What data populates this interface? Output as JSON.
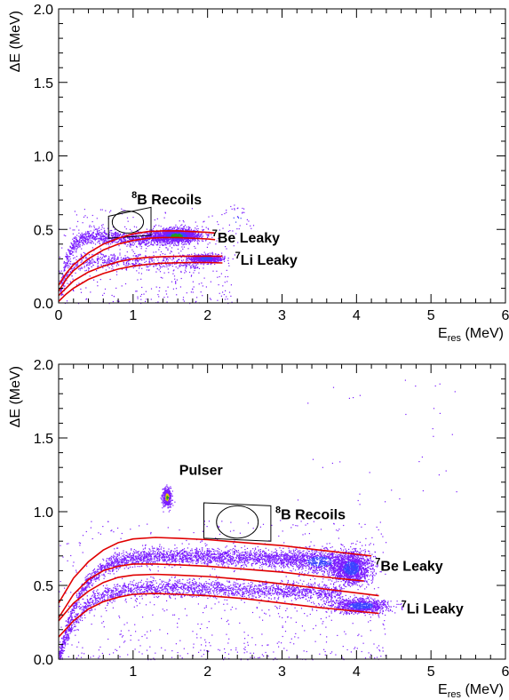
{
  "chart_data": [
    {
      "type": "scatter",
      "panel": "top",
      "xlabel_main": "E",
      "xlabel_sub": "res",
      "xlabel_unit": " (MeV)",
      "ylabel": "ΔE (MeV)",
      "xlim": [
        0,
        6
      ],
      "ylim": [
        0,
        2.0
      ],
      "xticks": [
        0,
        1,
        2,
        3,
        4,
        5,
        6
      ],
      "xtick_labels": [
        "0",
        "1",
        "2",
        "3",
        "4",
        "5",
        "6"
      ],
      "yticks": [
        0.0,
        0.5,
        1.0,
        1.5,
        2.0
      ],
      "ytick_labels": [
        "0.0",
        "0.5",
        "1.0",
        "1.5",
        "2.0"
      ],
      "grid": false,
      "annotations": [
        {
          "sup": "8",
          "text": "B Recoils",
          "x": 0.98,
          "y": 0.67
        },
        {
          "sup": "7",
          "text": "Be Leaky",
          "x": 2.06,
          "y": 0.41
        },
        {
          "sup": "7",
          "text": "Li Leaky",
          "x": 2.37,
          "y": 0.26
        }
      ],
      "selection_box": {
        "x": [
          0.67,
          1.24
        ],
        "y_low": [
          0.44,
          0.46
        ],
        "y_high": [
          0.59,
          0.65
        ]
      },
      "selection_circle": {
        "x": 0.93,
        "y": 0.55,
        "rx": 0.21,
        "ry": 0.075
      },
      "clusters": [
        {
          "name": "7Be",
          "x": 1.58,
          "y": 0.46,
          "sx": 0.17,
          "sy": 0.025,
          "n": 1500,
          "peak_color": "#1fa020"
        },
        {
          "name": "7Li",
          "x": 1.97,
          "y": 0.305,
          "sx": 0.11,
          "sy": 0.014,
          "n": 700
        },
        {
          "name": "upper-right",
          "x": 2.4,
          "y": 0.58,
          "sx": 0.1,
          "sy": 0.05,
          "n": 28
        }
      ],
      "bands": [
        {
          "x0": 0.02,
          "x1": 1.45,
          "a": 0.46,
          "b": 0.1,
          "c": 0.1,
          "n": 1000
        },
        {
          "x0": 0.02,
          "x1": 1.9,
          "a": 0.3,
          "b": 0.12,
          "c": 0.1,
          "n": 600
        }
      ],
      "curves": [
        {
          "x": [
            0.0,
            0.1,
            0.2,
            0.4,
            0.6,
            0.8,
            1.0,
            1.2,
            1.4,
            1.6,
            1.8,
            2.0,
            2.1
          ],
          "y": [
            0.12,
            0.2,
            0.26,
            0.34,
            0.4,
            0.44,
            0.47,
            0.485,
            0.49,
            0.49,
            0.485,
            0.48,
            0.475
          ]
        },
        {
          "x": [
            0.0,
            0.1,
            0.2,
            0.4,
            0.6,
            0.8,
            1.0,
            1.2,
            1.4,
            1.6,
            1.8,
            2.0,
            2.1
          ],
          "y": [
            0.08,
            0.16,
            0.22,
            0.3,
            0.36,
            0.4,
            0.425,
            0.44,
            0.445,
            0.445,
            0.44,
            0.435,
            0.43
          ]
        },
        {
          "x": [
            0.0,
            0.1,
            0.2,
            0.4,
            0.6,
            0.8,
            1.0,
            1.2,
            1.4,
            1.6,
            1.8,
            2.0,
            2.2
          ],
          "y": [
            0.05,
            0.1,
            0.15,
            0.21,
            0.25,
            0.28,
            0.3,
            0.31,
            0.315,
            0.317,
            0.318,
            0.318,
            0.318
          ]
        },
        {
          "x": [
            0.0,
            0.1,
            0.2,
            0.4,
            0.6,
            0.8,
            1.0,
            1.2,
            1.4,
            1.6,
            1.8,
            2.0,
            2.2
          ],
          "y": [
            0.01,
            0.06,
            0.1,
            0.16,
            0.2,
            0.23,
            0.25,
            0.263,
            0.27,
            0.273,
            0.275,
            0.275,
            0.272
          ]
        }
      ],
      "noise": {
        "n": 320,
        "x": [
          0.0,
          2.4
        ],
        "y": [
          0.0,
          0.65
        ]
      }
    },
    {
      "type": "scatter",
      "panel": "bottom",
      "xlabel_main": "E",
      "xlabel_sub": "res",
      "xlabel_unit": " (MeV)",
      "ylabel": "ΔE (MeV)",
      "xlim": [
        0,
        6
      ],
      "ylim": [
        0,
        2.0
      ],
      "xticks": [
        1,
        2,
        3,
        4,
        5,
        6
      ],
      "xtick_labels": [
        "1",
        "2",
        "3",
        "4",
        "5",
        "6"
      ],
      "yticks": [
        0.0,
        0.5,
        1.0,
        1.5,
        2.0
      ],
      "ytick_labels": [
        "0.0",
        "0.5",
        "1.0",
        "1.5",
        "2.0"
      ],
      "grid": false,
      "annotations": [
        {
          "sup": "",
          "text": "Pulser",
          "x": 1.62,
          "y": 1.25
        },
        {
          "sup": "8",
          "text": "B Recoils",
          "x": 2.91,
          "y": 0.95
        },
        {
          "sup": "7",
          "text": "Be Leaky",
          "x": 4.25,
          "y": 0.6
        },
        {
          "sup": "7",
          "text": "Li Leaky",
          "x": 4.6,
          "y": 0.31
        }
      ],
      "selection_box": {
        "x": [
          1.95,
          2.85
        ],
        "y_low": [
          0.82,
          0.8
        ],
        "y_high": [
          1.06,
          1.04
        ]
      },
      "selection_circle": {
        "x": 2.4,
        "y": 0.93,
        "rx": 0.28,
        "ry": 0.11
      },
      "clusters": [
        {
          "name": "pulser",
          "x": 1.45,
          "y": 1.1,
          "sx": 0.03,
          "sy": 0.03,
          "n": 500,
          "peak_color": "#1fa020",
          "hot": true
        },
        {
          "name": "7Be",
          "x": 3.92,
          "y": 0.62,
          "sx": 0.13,
          "sy": 0.055,
          "n": 1600
        },
        {
          "name": "7Be-tail",
          "x": 3.5,
          "y": 0.665,
          "sx": 0.2,
          "sy": 0.04,
          "n": 700
        },
        {
          "name": "7Li",
          "x": 4.05,
          "y": 0.365,
          "sx": 0.2,
          "sy": 0.025,
          "n": 900
        }
      ],
      "bands": [
        {
          "x0": 0.0,
          "x1": 3.3,
          "a": 0.73,
          "b": 0.25,
          "c": 0.3,
          "n": 2400
        },
        {
          "x0": 0.0,
          "x1": 3.8,
          "a": 0.51,
          "b": 0.2,
          "c": 0.3,
          "n": 2000
        }
      ],
      "curves": [
        {
          "x": [
            0.0,
            0.2,
            0.4,
            0.6,
            0.8,
            1.0,
            1.3,
            1.6,
            2.0,
            2.5,
            3.0,
            3.5,
            4.2
          ],
          "y": [
            0.38,
            0.55,
            0.66,
            0.74,
            0.79,
            0.815,
            0.825,
            0.82,
            0.81,
            0.79,
            0.77,
            0.74,
            0.7
          ]
        },
        {
          "x": [
            0.0,
            0.2,
            0.4,
            0.6,
            0.8,
            1.0,
            1.3,
            1.6,
            2.0,
            2.5,
            3.0,
            3.5,
            4.1
          ],
          "y": [
            0.28,
            0.44,
            0.54,
            0.6,
            0.63,
            0.645,
            0.645,
            0.64,
            0.63,
            0.61,
            0.59,
            0.56,
            0.53
          ]
        },
        {
          "x": [
            0.0,
            0.2,
            0.4,
            0.6,
            0.8,
            1.0,
            1.3,
            1.6,
            2.0,
            2.5,
            3.0,
            3.5,
            4.3
          ],
          "y": [
            0.26,
            0.38,
            0.46,
            0.52,
            0.555,
            0.57,
            0.575,
            0.57,
            0.56,
            0.54,
            0.51,
            0.48,
            0.43
          ]
        },
        {
          "x": [
            0.0,
            0.2,
            0.4,
            0.6,
            0.8,
            1.0,
            1.3,
            1.6,
            2.0,
            2.5,
            3.0,
            3.5,
            4.3
          ],
          "y": [
            0.15,
            0.26,
            0.34,
            0.39,
            0.42,
            0.44,
            0.445,
            0.44,
            0.43,
            0.41,
            0.38,
            0.35,
            0.31
          ]
        }
      ],
      "noise": {
        "n": 650,
        "x": [
          0.0,
          4.4
        ],
        "y": [
          0.0,
          0.95
        ]
      },
      "sparse": {
        "n": 34,
        "x": [
          3.2,
          5.5
        ],
        "y": [
          1.05,
          1.9
        ]
      }
    }
  ]
}
